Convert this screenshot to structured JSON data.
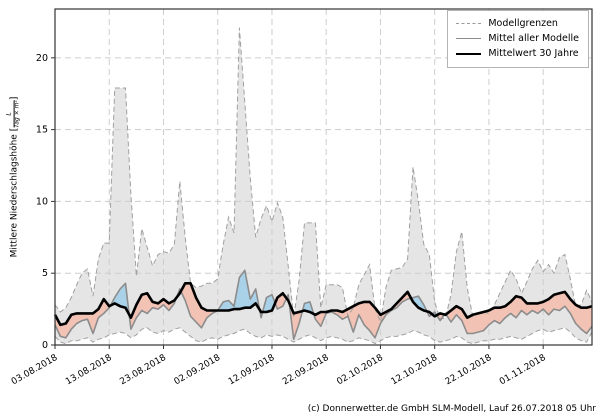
{
  "figure": {
    "caption": "(c) Donnerwetter.de GmbH SLM-Modell, Lauf 26.07.2018 05 Uhr"
  },
  "chart_data": {
    "type": "line",
    "title": "",
    "xlabel": "",
    "ylabel": {
      "prefix": "Mittlere Niederschlagshöhe [",
      "unit_numerator": "L",
      "unit_denominator": "Tag × m²",
      "suffix": "]"
    },
    "x_start_date": "03.08.2018",
    "x_step_days": 1,
    "x_tick_days": [
      0,
      10,
      20,
      30,
      40,
      50,
      60,
      70,
      80,
      90
    ],
    "x_tick_labels": [
      "03.08.2018",
      "13.08.2018",
      "23.08.2018",
      "02.09.2018",
      "12.09.2018",
      "22.09.2018",
      "02.10.2018",
      "12.10.2018",
      "22.10.2018",
      "01.11.2018"
    ],
    "y_ticks": [
      0,
      5,
      10,
      15,
      20
    ],
    "ylim": [
      0,
      23.4
    ],
    "grid": true,
    "legend": {
      "position": "top-right",
      "entries": [
        {
          "label": "Modellgrenzen",
          "style": "dashed-gray"
        },
        {
          "label": "Mittel aller Modelle",
          "style": "solid-gray"
        },
        {
          "label": "Mittelwert 30 Jahre",
          "style": "solid-black-thick"
        }
      ]
    },
    "style": {
      "band_fill": "#e5e5e5",
      "band_edge": "#a0a0a0",
      "grid_color": "#cdcdcd",
      "mean_line": "#8c8c8c",
      "mean30_line": "#000000",
      "above_fill": "#a9d2e8",
      "below_fill": "#f2c3b5",
      "frame": "#333333"
    },
    "series": [
      {
        "name": "Modellgrenze oben",
        "values": [
          2.8,
          2.3,
          2.6,
          3.3,
          4.2,
          5.0,
          5.3,
          3.4,
          6.0,
          7.1,
          7.1,
          17.9,
          17.9,
          17.9,
          10.5,
          4.8,
          8.1,
          6.8,
          5.5,
          6.3,
          6.5,
          6.4,
          7.0,
          11.4,
          7.5,
          4.3,
          4.0,
          4.1,
          4.3,
          4.3,
          4.6,
          7.0,
          8.9,
          7.8,
          22.1,
          16.9,
          11.6,
          7.5,
          8.8,
          9.7,
          8.6,
          9.9,
          8.9,
          5.5,
          1.9,
          4.5,
          8.5,
          8.5,
          8.5,
          2.6,
          4.2,
          4.2,
          4.2,
          4.0,
          2.0,
          2.6,
          4.2,
          4.9,
          5.6,
          2.5,
          1.6,
          4.0,
          5.2,
          5.3,
          5.4,
          6.0,
          12.4,
          10.0,
          7.0,
          6.3,
          3.0,
          1.8,
          1.9,
          3.5,
          6.5,
          7.9,
          4.0,
          2.0,
          2.2,
          2.3,
          2.2,
          2.8,
          3.6,
          4.4,
          5.2,
          4.6,
          3.6,
          4.4,
          5.3,
          5.9,
          5.1,
          5.6,
          5.0,
          6.1,
          6.3,
          4.6,
          2.7,
          2.8,
          3.8,
          3.0
        ]
      },
      {
        "name": "Modellgrenze unten",
        "values": [
          0.6,
          0.2,
          0.1,
          0.3,
          0.3,
          0.4,
          0.5,
          0.2,
          0.4,
          0.5,
          0.7,
          0.8,
          0.9,
          0.8,
          0.5,
          0.7,
          1.1,
          1.2,
          0.9,
          0.8,
          1.0,
          0.9,
          1.1,
          1.2,
          0.9,
          0.6,
          0.3,
          0.2,
          0.4,
          0.5,
          0.4,
          0.6,
          0.7,
          0.8,
          1.0,
          1.1,
          0.8,
          0.6,
          0.5,
          0.7,
          0.6,
          0.7,
          0.6,
          0.4,
          0.2,
          0.4,
          0.6,
          0.7,
          0.5,
          0.3,
          0.5,
          0.6,
          0.5,
          0.4,
          0.2,
          0.3,
          0.5,
          0.4,
          0.3,
          0.1,
          0.3,
          0.5,
          0.6,
          0.6,
          0.7,
          0.8,
          1.0,
          0.9,
          0.7,
          0.6,
          0.3,
          0.2,
          0.3,
          0.4,
          0.6,
          0.5,
          0.2,
          0.1,
          0.2,
          0.3,
          0.3,
          0.4,
          0.4,
          0.5,
          0.6,
          0.5,
          0.4,
          0.6,
          0.8,
          1.0,
          1.1,
          0.9,
          1.0,
          1.1,
          1.2,
          0.9,
          0.5,
          0.3,
          0.2,
          0.9
        ]
      },
      {
        "name": "Mittel aller Modelle",
        "values": [
          1.4,
          0.6,
          0.5,
          1.1,
          1.5,
          1.7,
          1.8,
          0.8,
          1.9,
          2.2,
          2.6,
          3.3,
          3.9,
          4.3,
          1.1,
          1.9,
          2.4,
          2.2,
          2.6,
          2.5,
          2.8,
          2.4,
          2.9,
          3.9,
          3.1,
          2.0,
          1.6,
          1.2,
          1.9,
          2.2,
          2.4,
          3.0,
          3.1,
          2.7,
          4.7,
          5.2,
          3.2,
          3.9,
          1.9,
          3.3,
          3.5,
          2.5,
          2.7,
          3.5,
          0.4,
          1.5,
          2.9,
          3.0,
          1.8,
          1.3,
          2.2,
          2.3,
          2.1,
          1.8,
          2.0,
          0.9,
          2.1,
          1.4,
          1.0,
          0.5,
          1.5,
          2.1,
          2.4,
          2.6,
          3.0,
          3.2,
          3.3,
          3.4,
          2.8,
          2.0,
          2.3,
          1.7,
          2.2,
          1.6,
          2.1,
          1.7,
          0.8,
          0.8,
          0.9,
          1.0,
          1.4,
          1.7,
          1.5,
          1.9,
          2.2,
          1.9,
          2.4,
          2.1,
          2.4,
          2.2,
          2.5,
          2.1,
          2.5,
          2.4,
          2.7,
          2.2,
          1.5,
          1.1,
          0.8,
          1.3
        ]
      },
      {
        "name": "Mittelwert 30 Jahre",
        "values": [
          2.1,
          1.4,
          1.5,
          2.1,
          2.2,
          2.2,
          2.2,
          2.2,
          2.5,
          3.2,
          2.7,
          2.9,
          2.7,
          2.6,
          1.9,
          2.8,
          3.5,
          3.6,
          3.0,
          2.9,
          3.2,
          2.9,
          3.1,
          3.6,
          4.3,
          4.3,
          3.3,
          2.6,
          2.4,
          2.4,
          2.4,
          2.4,
          2.4,
          2.5,
          2.5,
          2.6,
          2.6,
          2.9,
          2.3,
          2.3,
          2.4,
          3.3,
          3.6,
          3.1,
          2.2,
          2.3,
          2.4,
          2.3,
          2.1,
          2.3,
          2.3,
          2.4,
          2.4,
          2.3,
          2.5,
          2.7,
          2.9,
          3.0,
          3.0,
          2.6,
          2.1,
          2.3,
          2.5,
          2.9,
          3.3,
          3.7,
          3.0,
          2.6,
          2.4,
          2.3,
          2.0,
          2.2,
          2.1,
          2.4,
          2.7,
          2.5,
          1.9,
          2.1,
          2.2,
          2.3,
          2.4,
          2.6,
          2.6,
          2.7,
          3.0,
          3.4,
          3.3,
          2.9,
          2.9,
          2.9,
          3.0,
          3.2,
          3.5,
          3.6,
          3.7,
          3.2,
          2.8,
          2.6,
          2.6,
          2.7
        ]
      }
    ]
  }
}
